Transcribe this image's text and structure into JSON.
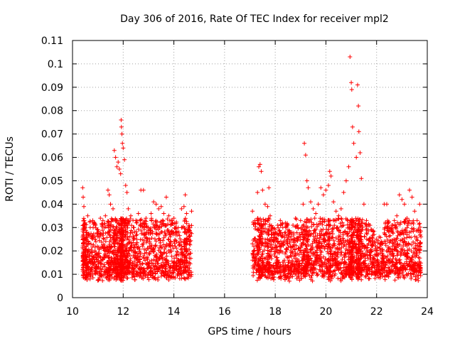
{
  "chart_data": {
    "type": "scatter",
    "title": "Day 306 of 2016, Rate Of TEC Index for receiver mpl2",
    "xlabel": "GPS time / hours",
    "ylabel": "ROTI / TECUs",
    "xlim": [
      10,
      24
    ],
    "ylim": [
      0,
      0.11
    ],
    "xticks": [
      "10",
      "12",
      "14",
      "16",
      "18",
      "20",
      "22",
      "24"
    ],
    "yticks": [
      "0",
      "0.01",
      "0.02",
      "0.03",
      "0.04",
      "0.05",
      "0.06",
      "0.07",
      "0.08",
      "0.09",
      "0.1",
      "0.11"
    ],
    "grid": true,
    "marker": "+",
    "color": "#ff0000",
    "series": [
      {
        "name": "ROTI",
        "description": "Dense scatter of ROTI values; data gap between 14.7 h and 17.0 h",
        "points": [
          [
            10.4,
            0.047
          ],
          [
            10.42,
            0.043
          ],
          [
            10.45,
            0.039
          ],
          [
            10.5,
            0.032
          ],
          [
            10.55,
            0.028
          ],
          [
            10.6,
            0.035
          ],
          [
            10.7,
            0.03
          ],
          [
            10.8,
            0.033
          ],
          [
            10.9,
            0.031
          ],
          [
            11.0,
            0.029
          ],
          [
            11.1,
            0.034
          ],
          [
            11.2,
            0.033
          ],
          [
            11.3,
            0.035
          ],
          [
            11.4,
            0.046
          ],
          [
            11.45,
            0.044
          ],
          [
            11.5,
            0.04
          ],
          [
            11.6,
            0.038
          ],
          [
            11.65,
            0.063
          ],
          [
            11.7,
            0.06
          ],
          [
            11.75,
            0.056
          ],
          [
            11.8,
            0.058
          ],
          [
            11.85,
            0.055
          ],
          [
            11.9,
            0.053
          ],
          [
            11.92,
            0.076
          ],
          [
            11.93,
            0.073
          ],
          [
            11.95,
            0.07
          ],
          [
            11.97,
            0.066
          ],
          [
            12.0,
            0.064
          ],
          [
            12.05,
            0.059
          ],
          [
            12.1,
            0.048
          ],
          [
            12.15,
            0.045
          ],
          [
            12.2,
            0.038
          ],
          [
            12.3,
            0.035
          ],
          [
            12.4,
            0.03
          ],
          [
            12.5,
            0.033
          ],
          [
            12.6,
            0.036
          ],
          [
            12.7,
            0.046
          ],
          [
            12.8,
            0.046
          ],
          [
            12.9,
            0.034
          ],
          [
            13.0,
            0.03
          ],
          [
            13.1,
            0.036
          ],
          [
            13.2,
            0.041
          ],
          [
            13.3,
            0.04
          ],
          [
            13.4,
            0.038
          ],
          [
            13.5,
            0.039
          ],
          [
            13.6,
            0.036
          ],
          [
            13.7,
            0.043
          ],
          [
            13.8,
            0.035
          ],
          [
            13.9,
            0.033
          ],
          [
            14.0,
            0.034
          ],
          [
            14.1,
            0.03
          ],
          [
            14.2,
            0.028
          ],
          [
            14.3,
            0.038
          ],
          [
            14.4,
            0.039
          ],
          [
            14.45,
            0.044
          ],
          [
            14.5,
            0.036
          ],
          [
            14.6,
            0.031
          ],
          [
            14.7,
            0.037
          ],
          [
            17.1,
            0.037
          ],
          [
            17.2,
            0.033
          ],
          [
            17.3,
            0.045
          ],
          [
            17.35,
            0.056
          ],
          [
            17.4,
            0.057
          ],
          [
            17.45,
            0.054
          ],
          [
            17.5,
            0.046
          ],
          [
            17.6,
            0.04
          ],
          [
            17.7,
            0.039
          ],
          [
            17.75,
            0.047
          ],
          [
            17.8,
            0.035
          ],
          [
            17.9,
            0.03
          ],
          [
            18.0,
            0.028
          ],
          [
            18.1,
            0.031
          ],
          [
            18.2,
            0.033
          ],
          [
            18.3,
            0.03
          ],
          [
            18.4,
            0.032
          ],
          [
            18.5,
            0.029
          ],
          [
            18.6,
            0.028
          ],
          [
            18.7,
            0.031
          ],
          [
            18.8,
            0.034
          ],
          [
            18.9,
            0.03
          ],
          [
            19.0,
            0.033
          ],
          [
            19.1,
            0.04
          ],
          [
            19.15,
            0.066
          ],
          [
            19.2,
            0.061
          ],
          [
            19.25,
            0.05
          ],
          [
            19.3,
            0.047
          ],
          [
            19.4,
            0.041
          ],
          [
            19.5,
            0.038
          ],
          [
            19.6,
            0.036
          ],
          [
            19.7,
            0.04
          ],
          [
            19.8,
            0.047
          ],
          [
            19.9,
            0.044
          ],
          [
            20.0,
            0.046
          ],
          [
            20.1,
            0.048
          ],
          [
            20.15,
            0.054
          ],
          [
            20.2,
            0.052
          ],
          [
            20.3,
            0.041
          ],
          [
            20.4,
            0.037
          ],
          [
            20.5,
            0.035
          ],
          [
            20.6,
            0.038
          ],
          [
            20.7,
            0.045
          ],
          [
            20.8,
            0.05
          ],
          [
            20.9,
            0.056
          ],
          [
            20.95,
            0.103
          ],
          [
            21.0,
            0.092
          ],
          [
            21.02,
            0.089
          ],
          [
            21.05,
            0.073
          ],
          [
            21.1,
            0.066
          ],
          [
            21.2,
            0.06
          ],
          [
            21.25,
            0.091
          ],
          [
            21.28,
            0.082
          ],
          [
            21.3,
            0.071
          ],
          [
            21.35,
            0.062
          ],
          [
            21.4,
            0.051
          ],
          [
            21.5,
            0.04
          ],
          [
            21.6,
            0.033
          ],
          [
            21.7,
            0.031
          ],
          [
            21.8,
            0.029
          ],
          [
            21.9,
            0.027
          ],
          [
            22.0,
            0.025
          ],
          [
            22.1,
            0.026
          ],
          [
            22.2,
            0.024
          ],
          [
            22.3,
            0.04
          ],
          [
            22.4,
            0.04
          ],
          [
            22.5,
            0.03
          ],
          [
            22.6,
            0.031
          ],
          [
            22.7,
            0.033
          ],
          [
            22.8,
            0.035
          ],
          [
            22.9,
            0.044
          ],
          [
            23.0,
            0.042
          ],
          [
            23.1,
            0.04
          ],
          [
            23.2,
            0.034
          ],
          [
            23.3,
            0.046
          ],
          [
            23.4,
            0.043
          ],
          [
            23.5,
            0.037
          ],
          [
            23.6,
            0.033
          ],
          [
            23.7,
            0.04
          ],
          [
            23.75,
            0.026
          ]
        ]
      }
    ]
  }
}
